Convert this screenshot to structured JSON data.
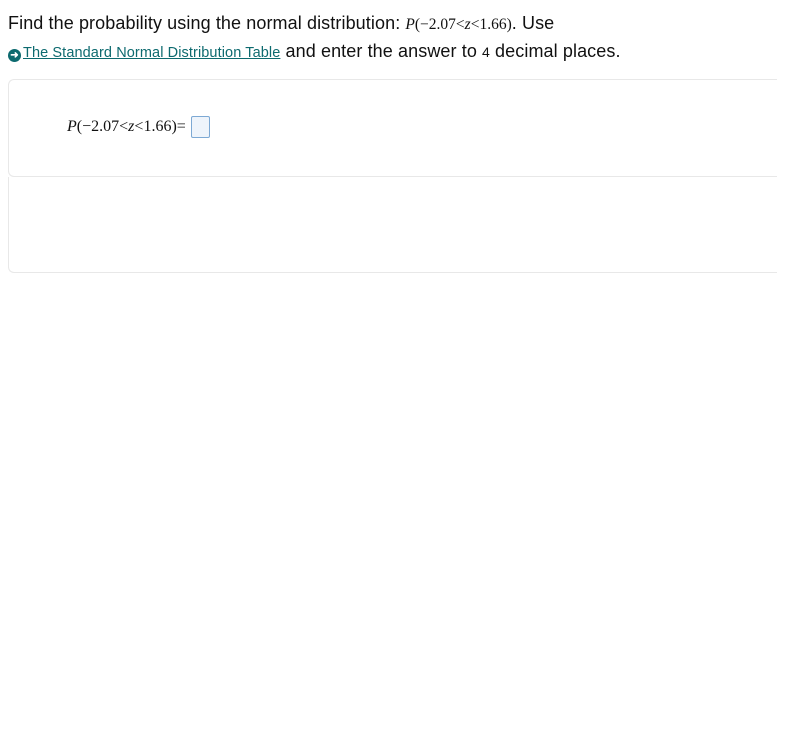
{
  "question": {
    "prefix": "Find the probability using the normal distribution: ",
    "formula_prefix": "P",
    "formula_paren_open": "(−",
    "formula_low": "2.07",
    "formula_lt1": "<",
    "formula_var": "z",
    "formula_lt2": "<",
    "formula_high": "1.66",
    "formula_paren_close": ")",
    "after_formula": ". Use",
    "link_text": "The Standard Normal Distribution Table",
    "mid_text": " and enter the answer to ",
    "decimals": "4",
    "suffix": " decimal places."
  },
  "answer": {
    "formula_prefix": "P",
    "formula_paren_open": "(−",
    "formula_low": "2.07",
    "formula_lt1": "<",
    "formula_var": "z",
    "formula_lt2": "<",
    "formula_high": "1.66",
    "formula_paren_close": ")",
    "equals": " = "
  },
  "colors": {
    "text": "#111111",
    "link": "#0d6a6f",
    "border": "#e8e8e8",
    "input_border": "#7da9d4",
    "input_bg": "#eef4fb"
  }
}
